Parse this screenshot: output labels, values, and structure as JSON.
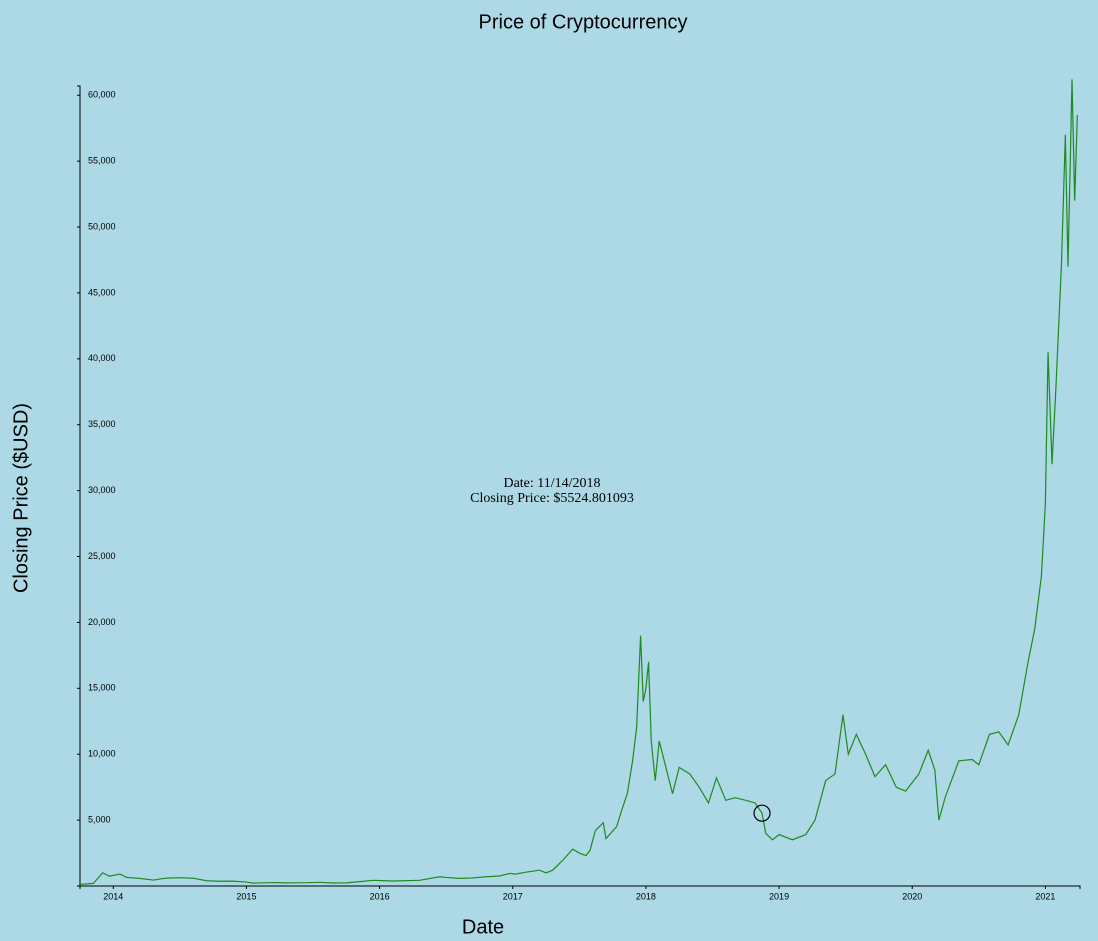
{
  "chart_data": {
    "type": "line",
    "title": "Price of Cryptocurrency",
    "x_label": "Date",
    "y_label": "Closing Price ($USD)",
    "x": [
      2013.75,
      2013.85,
      2013.92,
      2013.97,
      2014.05,
      2014.1,
      2014.2,
      2014.3,
      2014.4,
      2014.5,
      2014.6,
      2014.7,
      2014.8,
      2014.9,
      2015.0,
      2015.05,
      2015.2,
      2015.3,
      2015.45,
      2015.55,
      2015.65,
      2015.75,
      2015.85,
      2015.95,
      2016.1,
      2016.3,
      2016.45,
      2016.5,
      2016.6,
      2016.7,
      2016.8,
      2016.9,
      2016.98,
      2017.02,
      2017.1,
      2017.2,
      2017.25,
      2017.3,
      2017.38,
      2017.45,
      2017.5,
      2017.55,
      2017.58,
      2017.62,
      2017.68,
      2017.7,
      2017.78,
      2017.82,
      2017.86,
      2017.9,
      2017.93,
      2017.96,
      2017.98,
      2018.0,
      2018.02,
      2018.04,
      2018.07,
      2018.1,
      2018.15,
      2018.2,
      2018.25,
      2018.33,
      2018.4,
      2018.47,
      2018.53,
      2018.6,
      2018.67,
      2018.75,
      2018.82,
      2018.872,
      2018.9,
      2018.95,
      2019.0,
      2019.1,
      2019.2,
      2019.27,
      2019.35,
      2019.42,
      2019.48,
      2019.52,
      2019.58,
      2019.65,
      2019.72,
      2019.8,
      2019.88,
      2019.95,
      2020.05,
      2020.12,
      2020.17,
      2020.2,
      2020.25,
      2020.35,
      2020.45,
      2020.5,
      2020.58,
      2020.65,
      2020.72,
      2020.8,
      2020.87,
      2020.92,
      2020.97,
      2021.0,
      2021.02,
      2021.05,
      2021.08,
      2021.12,
      2021.15,
      2021.17,
      2021.2,
      2021.22,
      2021.24
    ],
    "series": [
      {
        "name": "Closing Price",
        "color": "#1f8a1f",
        "values": [
          120,
          200,
          1000,
          750,
          900,
          650,
          580,
          450,
          600,
          630,
          590,
          400,
          360,
          370,
          300,
          220,
          260,
          240,
          250,
          280,
          230,
          240,
          330,
          430,
          380,
          430,
          700,
          650,
          580,
          610,
          700,
          760,
          960,
          900,
          1050,
          1200,
          1000,
          1200,
          2000,
          2800,
          2500,
          2300,
          2700,
          4200,
          4800,
          3600,
          4500,
          5800,
          7000,
          9500,
          12000,
          19000,
          14000,
          15000,
          17000,
          11000,
          8000,
          11000,
          9000,
          7000,
          9000,
          8500,
          7500,
          6300,
          8200,
          6500,
          6700,
          6500,
          6300,
          5524.801093,
          4000,
          3500,
          3900,
          3500,
          3900,
          5000,
          8000,
          8500,
          13000,
          10000,
          11500,
          10000,
          8300,
          9200,
          7500,
          7200,
          8500,
          10300,
          8800,
          5000,
          6800,
          9500,
          9600,
          9200,
          11500,
          11700,
          10700,
          13000,
          17000,
          19500,
          23500,
          29000,
          40500,
          32000,
          38000,
          47000,
          57000,
          47000,
          61200,
          52000,
          58500
        ]
      }
    ],
    "xlim": [
      2013.75,
      2021.26
    ],
    "ylim": [
      0,
      60700
    ],
    "xticks": [
      2014,
      2015,
      2016,
      2017,
      2018,
      2019,
      2020,
      2021
    ],
    "yticks": [
      {
        "value": 5000,
        "label": "5,000"
      },
      {
        "value": 10000,
        "label": "10,000"
      },
      {
        "value": 15000,
        "label": "15,000"
      },
      {
        "value": 20000,
        "label": "20,000"
      },
      {
        "value": 25000,
        "label": "25,000"
      },
      {
        "value": 30000,
        "label": "30,000"
      },
      {
        "value": 35000,
        "label": "35,000"
      },
      {
        "value": 40000,
        "label": "40,000"
      },
      {
        "value": 45000,
        "label": "45,000"
      },
      {
        "value": 50000,
        "label": "50,000"
      },
      {
        "value": 55000,
        "label": "55,000"
      },
      {
        "value": 60000,
        "label": "60,000"
      }
    ],
    "grid": false,
    "annotation": {
      "text": [
        "Date: 11/14/2018",
        "Closing Price: $5524.801093"
      ],
      "x": 2018.872,
      "y": 5524.801093
    }
  }
}
